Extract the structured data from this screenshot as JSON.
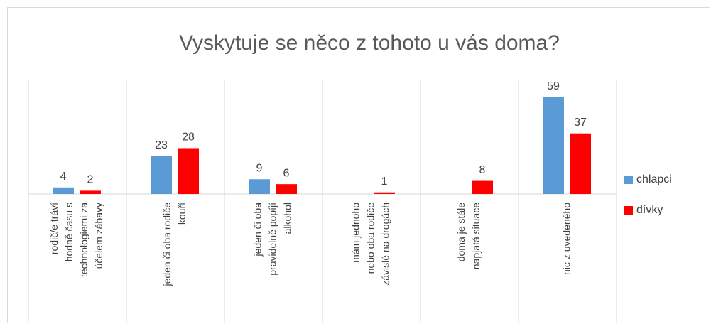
{
  "chart_data": {
    "type": "bar",
    "title": "Vyskytuje se něco z tohoto u vás doma?",
    "categories": [
      [
        "rodič/e tráví",
        "hodně času s",
        "technologiemi za",
        "účelem zábavy"
      ],
      [
        "jeden či oba rodiče",
        "kouří"
      ],
      [
        "jeden či oba",
        "pravidelně popíjí",
        "alkohol"
      ],
      [
        "mám jednoho",
        "nebo oba rodiče",
        "závislé na drogách"
      ],
      [
        "doma je stále",
        "napjatá situace"
      ],
      [
        "nic z uvedeného"
      ]
    ],
    "series": [
      {
        "name": "chlapci",
        "color": "#5b9bd5",
        "values": [
          4,
          23,
          9,
          null,
          null,
          59
        ]
      },
      {
        "name": "dívky",
        "color": "#ff0000",
        "values": [
          2,
          28,
          6,
          1,
          8,
          37
        ]
      }
    ],
    "legend": "right"
  }
}
